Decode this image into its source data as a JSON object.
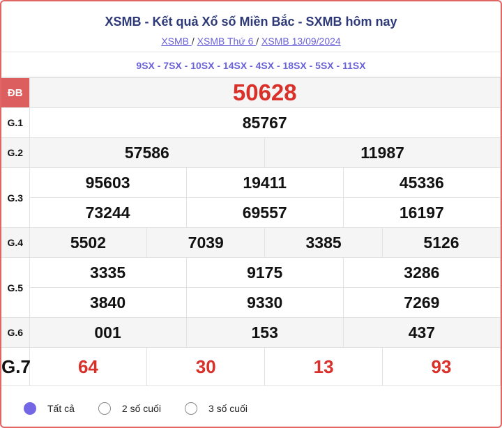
{
  "header": {
    "title": "XSMB - Kết quả Xổ số Miền Bắc - SXMB hôm nay",
    "breadcrumb": [
      "XSMB ",
      "XSMB Thứ 6 ",
      "XSMB 13/09/2024"
    ],
    "separator": "/"
  },
  "codes": "9SX - 7SX - 10SX - 14SX - 4SX - 18SX - 5SX - 11SX",
  "prizes": {
    "db": {
      "label": "ĐB",
      "values": [
        "50628"
      ]
    },
    "g1": {
      "label": "G.1",
      "values": [
        "85767"
      ]
    },
    "g2": {
      "label": "G.2",
      "values": [
        "57586",
        "11987"
      ]
    },
    "g3": {
      "label": "G.3",
      "values": [
        "95603",
        "19411",
        "45336",
        "73244",
        "69557",
        "16197"
      ]
    },
    "g4": {
      "label": "G.4",
      "values": [
        "5502",
        "7039",
        "3385",
        "5126"
      ]
    },
    "g5": {
      "label": "G.5",
      "values": [
        "3335",
        "9175",
        "3286",
        "3840",
        "9330",
        "7269"
      ]
    },
    "g6": {
      "label": "G.6",
      "values": [
        "001",
        "153",
        "437"
      ]
    },
    "g7": {
      "label": "G.7",
      "values": [
        "64",
        "30",
        "13",
        "93"
      ]
    }
  },
  "filters": [
    {
      "label": "Tất cả",
      "selected": true
    },
    {
      "label": "2 số cuối",
      "selected": false
    },
    {
      "label": "3 số cuối",
      "selected": false
    }
  ],
  "colors": {
    "accent": "#6a62d8",
    "title": "#2e3a78",
    "highlight": "#d9302a",
    "db_label_bg": "#dd5e5e",
    "border": "#e06666"
  }
}
